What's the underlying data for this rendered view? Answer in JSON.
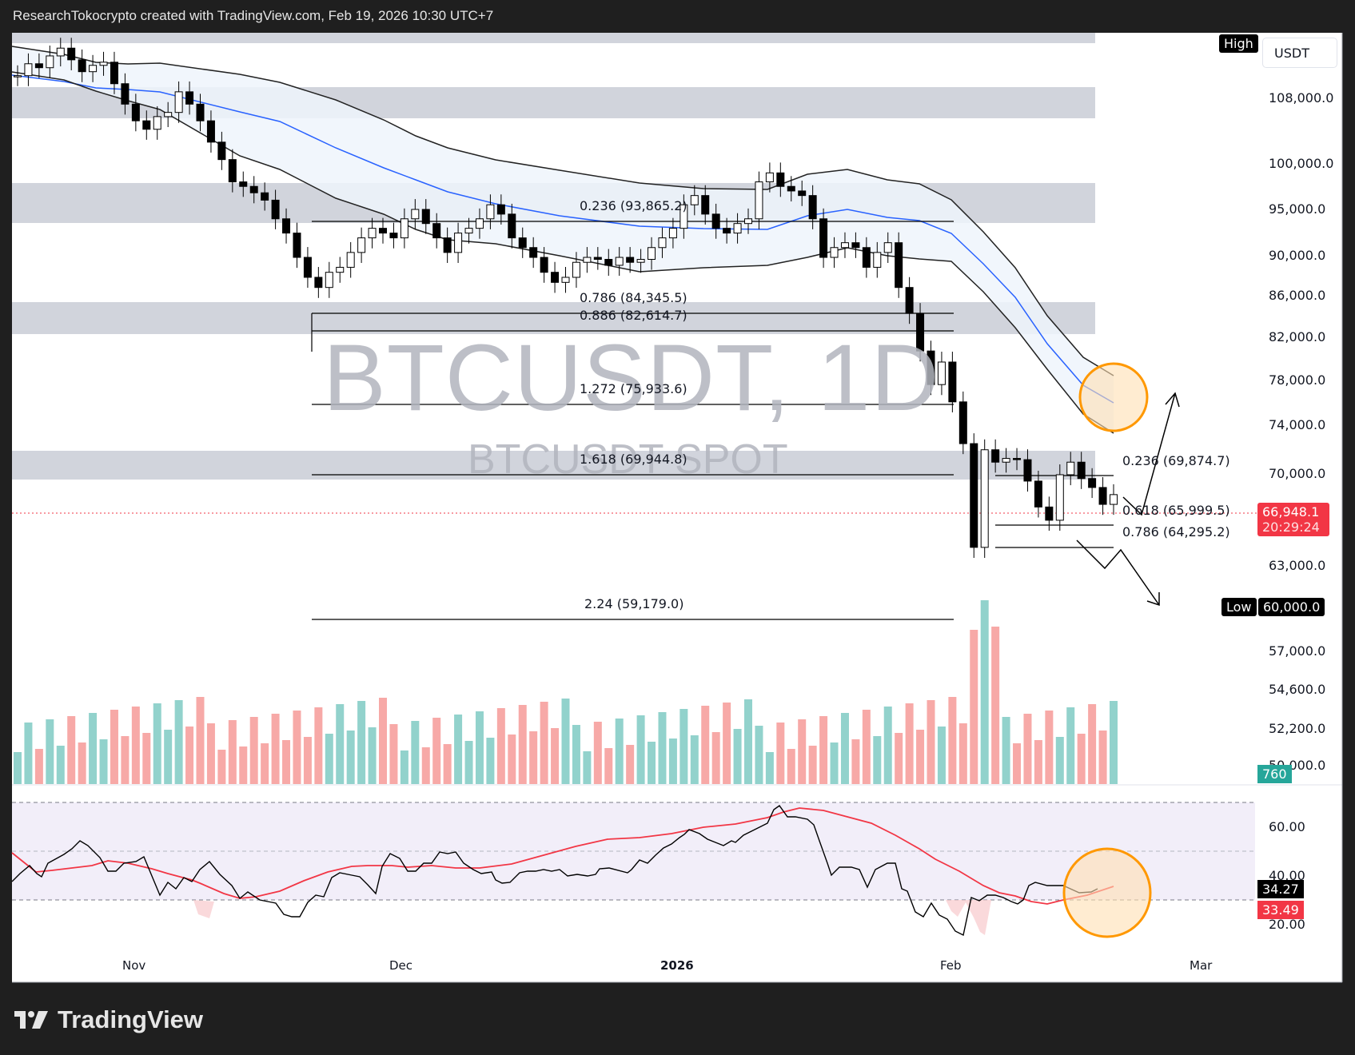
{
  "header": {
    "title": "ResearchTokocrypto created with TradingView.com, Feb 19, 2026 10:30 UTC+7"
  },
  "symbol": {
    "watermark": "BTCUSDT, 1D",
    "sub_watermark": "BTCUSDT SPOT"
  },
  "price_axis": {
    "currency": "USDT",
    "ticks": [
      "108,000.0",
      "100,000.0",
      "95,000.0",
      "90,000.0",
      "86,000.0",
      "82,000.0",
      "78,000.0",
      "74,000.0",
      "70,000.0",
      "63,000.0",
      "57,000.0",
      "54,600.0",
      "52,200.0",
      "50,000.0"
    ],
    "high_label": "High",
    "low_label": "Low",
    "low_value": "60,000.0",
    "last_price": "66,948.1",
    "countdown": "20:29:24",
    "volume_tag": "760"
  },
  "rsi_axis": {
    "ticks": [
      "60.00",
      "40.00",
      "20.00"
    ],
    "rsi_value": "34.27",
    "rsi_ma_value": "33.49"
  },
  "time_axis": {
    "labels": [
      "Nov",
      "Dec",
      "2026",
      "Feb",
      "Mar"
    ]
  },
  "fib_left": [
    {
      "label": "0.236 (93,865.2)"
    },
    {
      "label": "0.786 (84,345.5)"
    },
    {
      "label": "0.886 (82,614.7)"
    },
    {
      "label": "1.272 (75,933.6)"
    },
    {
      "label": "1.618 (69,944.8)"
    },
    {
      "label": "2.24 (59,179.0)"
    }
  ],
  "fib_right": [
    {
      "label": "0.236 (69,874.7)"
    },
    {
      "label": "0.618 (65,999.5)"
    },
    {
      "label": "0.786 (64,295.2)"
    }
  ],
  "colors": {
    "up_volume": "#92d2cc",
    "down_volume": "#f7a9a7",
    "ema_mid": "#2962ff",
    "rsi_ma": "#f23645",
    "highlight": "#ff9800",
    "last_price_bg": "#f23645",
    "volume_tag_bg": "#26a69a",
    "zone_gray": "#d1d4dc"
  },
  "footer": {
    "brand": "TradingView"
  },
  "chart_data": {
    "type": "candlestick",
    "title": "BTCUSDT, 1D",
    "subtitle": "BTCUSDT SPOT",
    "xlabel": "",
    "ylabel": "USDT",
    "x_ticks": [
      "Nov",
      "Dec",
      "2026",
      "Feb",
      "Mar"
    ],
    "ylim": [
      48000,
      114000
    ],
    "y_scale": "log",
    "last_price": 66948.1,
    "high": "off-screen",
    "low": 60000.0,
    "support_resistance_zones": [
      [
        111500,
        113000
      ],
      [
        104500,
        107500
      ],
      [
        93500,
        97500
      ],
      [
        82600,
        85400
      ],
      [
        69900,
        71800
      ]
    ],
    "fibonacci_left": [
      {
        "level": 0.236,
        "price": 93865.2
      },
      {
        "level": 0.786,
        "price": 84345.5
      },
      {
        "level": 0.886,
        "price": 82614.7
      },
      {
        "level": 1.272,
        "price": 75933.6
      },
      {
        "level": 1.618,
        "price": 69944.8
      },
      {
        "level": 2.24,
        "price": 59179.0
      }
    ],
    "fibonacci_right": [
      {
        "level": 0.236,
        "price": 69874.7
      },
      {
        "level": 0.618,
        "price": 65999.5
      },
      {
        "level": 0.786,
        "price": 64295.2
      }
    ],
    "approx_closes": [
      108500,
      110000,
      109500,
      111000,
      112000,
      110500,
      109000,
      109800,
      110200,
      107500,
      105000,
      103000,
      102000,
      103500,
      104000,
      106500,
      105000,
      103000,
      100500,
      98500,
      96000,
      95500,
      94800,
      94000,
      92000,
      90500,
      88000,
      86000,
      85000,
      86500,
      87000,
      88500,
      90000,
      91000,
      90500,
      90000,
      92000,
      93000,
      91500,
      90000,
      88500,
      90500,
      91000,
      92000,
      93500,
      92500,
      90000,
      89000,
      88000,
      86500,
      85500,
      86000,
      87500,
      88000,
      87800,
      87200,
      88000,
      87500,
      87800,
      89000,
      90000,
      91000,
      93500,
      94500,
      92500,
      91000,
      90500,
      91500,
      92000,
      96000,
      97000,
      95500,
      95000,
      94500,
      92000,
      88000,
      89000,
      89500,
      89000,
      87000,
      88500,
      89500,
      85000,
      82500,
      79000,
      76000,
      78000,
      74500,
      71000,
      63000,
      70500,
      69500,
      69800,
      69700,
      68000,
      66000,
      65000,
      68500,
      69500,
      68200,
      67500,
      66200,
      66948
    ],
    "volume": {
      "colors_by_direction": true,
      "last": 760
    },
    "indicators": [
      {
        "name": "EMA band",
        "lines": [
          "upper (black)",
          "mid (blue)",
          "lower (black)"
        ]
      },
      {
        "name": "RSI",
        "value": 34.27,
        "ma": 33.49,
        "bands": [
          30,
          50,
          70
        ]
      }
    ],
    "annotations": [
      "orange circle at EMA band end (~76,000)",
      "orange ellipse on RSI near 30-40",
      "arrow up toward ~77,000",
      "zigzag arrow down toward ~60,000"
    ]
  }
}
